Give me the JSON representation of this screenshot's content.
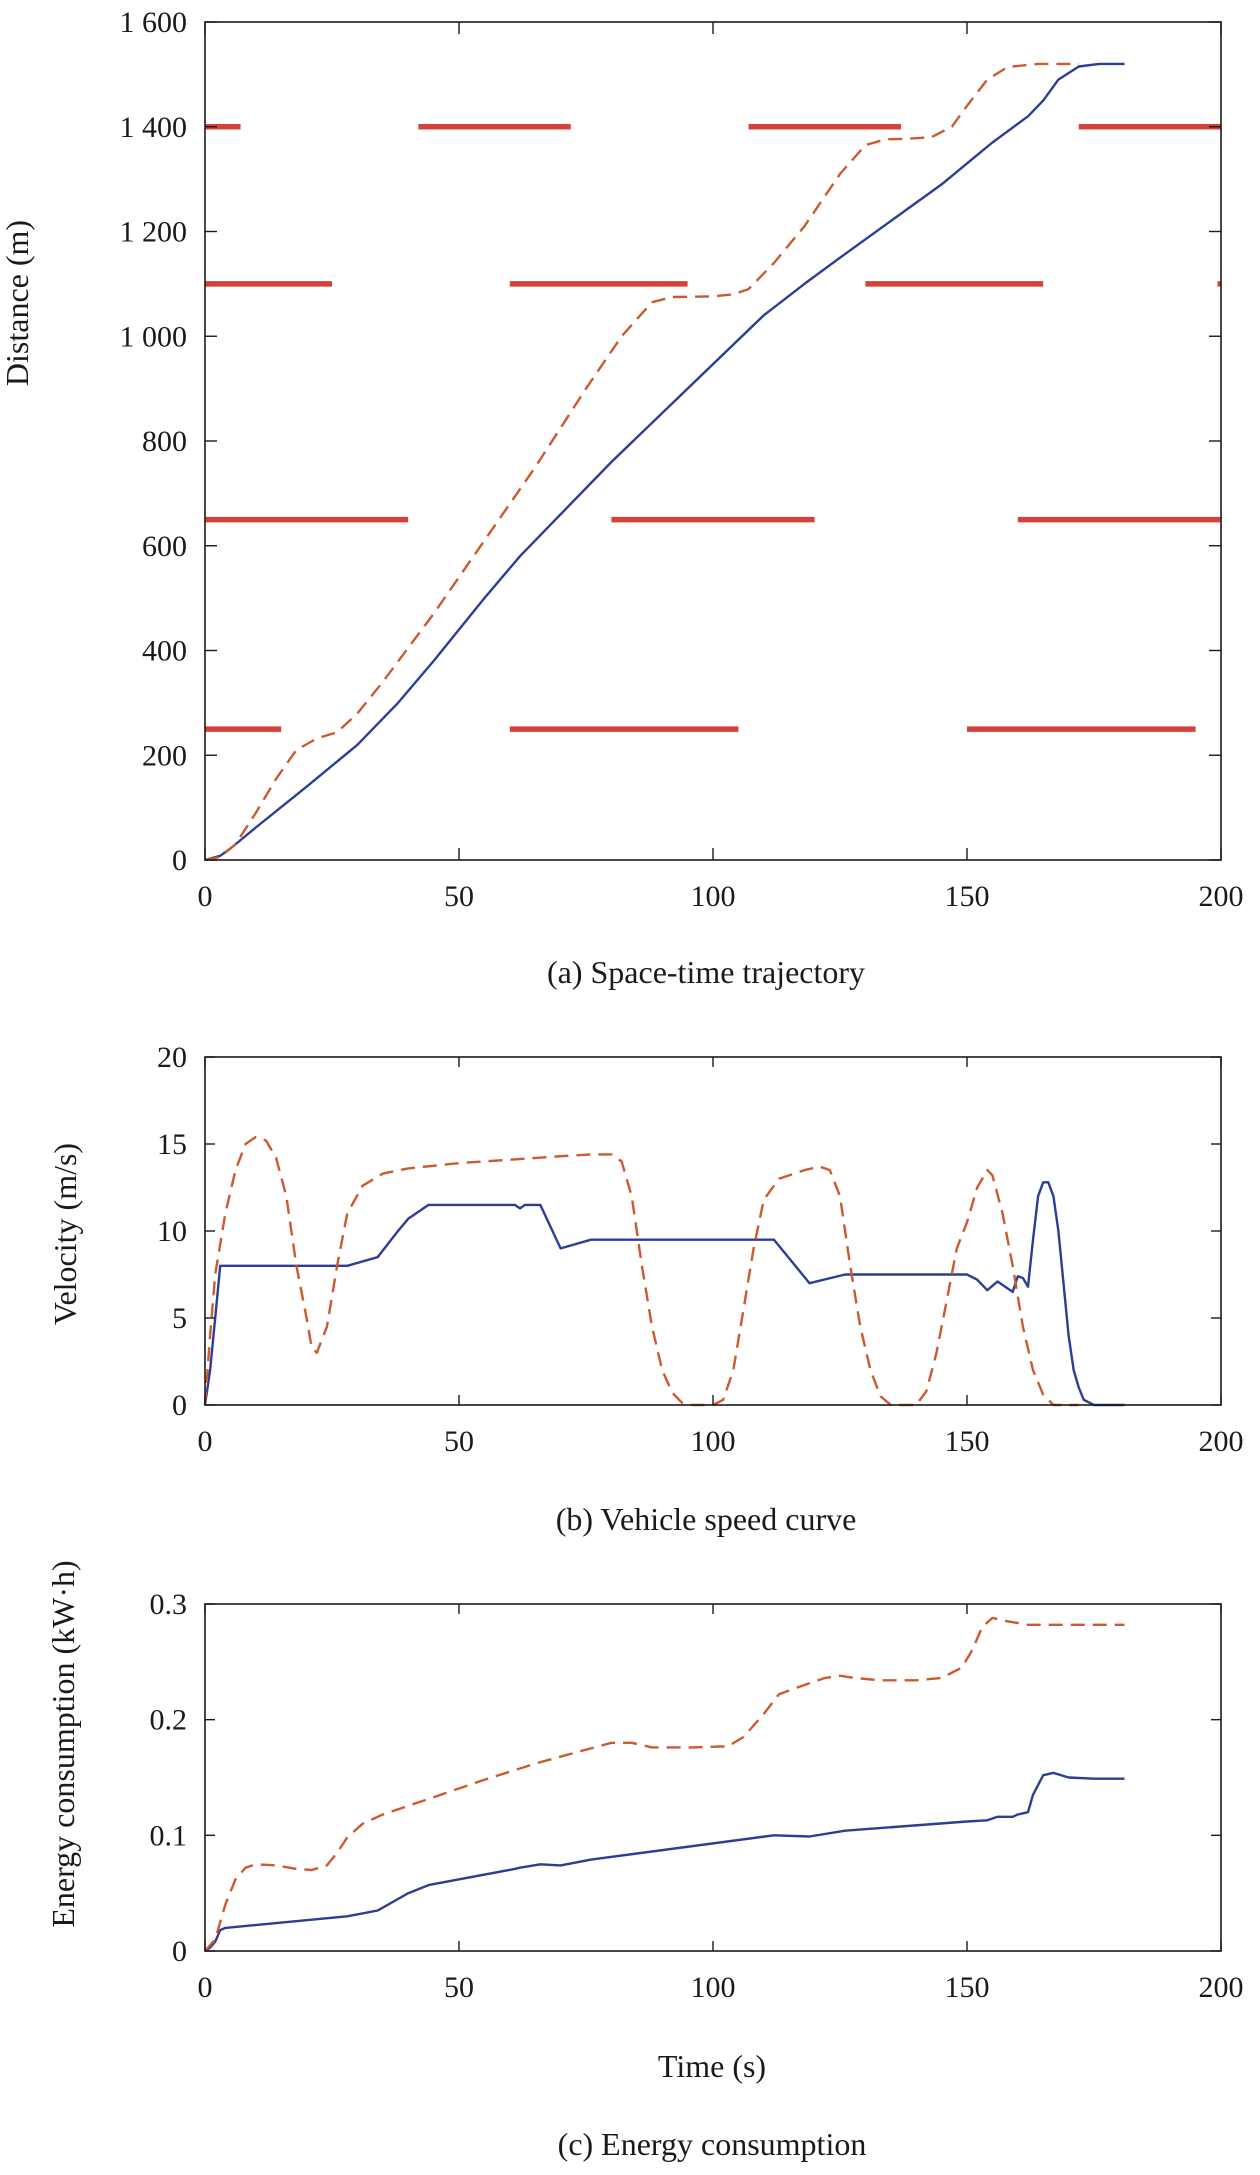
{
  "colors": {
    "series_solid": "#2c3e94",
    "series_dashed": "#cc5a2e",
    "signal_red": "#d6413a",
    "axis": "#1a1a1a"
  },
  "chart_data": [
    {
      "id": "a",
      "type": "line",
      "caption": "(a) Space-time trajectory",
      "xlabel": "",
      "ylabel": "Distance (m)",
      "xlim": [
        0,
        200
      ],
      "ylim": [
        0,
        1600
      ],
      "xticks": [
        0,
        50,
        100,
        150,
        200
      ],
      "xtick_labels": [
        "0",
        "50",
        "100",
        "150",
        "200"
      ],
      "yticks": [
        0,
        200,
        400,
        600,
        800,
        1000,
        1200,
        1400,
        1600
      ],
      "ytick_labels": [
        "0",
        "200",
        "400",
        "600",
        "800",
        "1 000",
        "1 200",
        "1 400",
        "1 600"
      ],
      "grid": false,
      "series": [
        {
          "style": "solid",
          "points": [
            [
              0,
              0
            ],
            [
              3,
              8
            ],
            [
              5,
              22
            ],
            [
              10,
              62
            ],
            [
              20,
              140
            ],
            [
              30,
              220
            ],
            [
              38,
              300
            ],
            [
              45,
              380
            ],
            [
              55,
              500
            ],
            [
              62,
              580
            ],
            [
              68,
              640
            ],
            [
              80,
              760
            ],
            [
              95,
              900
            ],
            [
              110,
              1040
            ],
            [
              118,
              1100
            ],
            [
              125,
              1150
            ],
            [
              135,
              1220
            ],
            [
              145,
              1290
            ],
            [
              150,
              1330
            ],
            [
              155,
              1370
            ],
            [
              162,
              1420
            ],
            [
              165,
              1450
            ],
            [
              168,
              1490
            ],
            [
              172,
              1515
            ],
            [
              176,
              1520
            ],
            [
              181,
              1520
            ]
          ]
        },
        {
          "style": "dashed",
          "points": [
            [
              0,
              0
            ],
            [
              3,
              6
            ],
            [
              6,
              30
            ],
            [
              10,
              90
            ],
            [
              14,
              155
            ],
            [
              18,
              210
            ],
            [
              22,
              232
            ],
            [
              26,
              244
            ],
            [
              30,
              280
            ],
            [
              35,
              340
            ],
            [
              45,
              470
            ],
            [
              55,
              610
            ],
            [
              65,
              750
            ],
            [
              75,
              900
            ],
            [
              82,
              1000
            ],
            [
              88,
              1065
            ],
            [
              92,
              1075
            ],
            [
              100,
              1076
            ],
            [
              104,
              1080
            ],
            [
              107,
              1090
            ],
            [
              112,
              1140
            ],
            [
              118,
              1210
            ],
            [
              125,
              1310
            ],
            [
              130,
              1365
            ],
            [
              134,
              1376
            ],
            [
              138,
              1377
            ],
            [
              143,
              1380
            ],
            [
              147,
              1400
            ],
            [
              150,
              1440
            ],
            [
              154,
              1490
            ],
            [
              158,
              1514
            ],
            [
              164,
              1520
            ],
            [
              172,
              1520
            ]
          ]
        }
      ],
      "signals": [
        {
          "distance": 250,
          "red_intervals": [
            [
              0,
              15
            ],
            [
              60,
              105
            ],
            [
              150,
              195
            ]
          ]
        },
        {
          "distance": 650,
          "red_intervals": [
            [
              0,
              40
            ],
            [
              80,
              120
            ],
            [
              160,
              200
            ]
          ]
        },
        {
          "distance": 1100,
          "red_intervals": [
            [
              0,
              25
            ],
            [
              60,
              95
            ],
            [
              130,
              165
            ],
            [
              199.3,
              200
            ]
          ]
        },
        {
          "distance": 1400,
          "red_intervals": [
            [
              0,
              7
            ],
            [
              42,
              72
            ],
            [
              107,
              137
            ],
            [
              172,
              200
            ]
          ]
        }
      ]
    },
    {
      "id": "b",
      "type": "line",
      "caption": "(b) Vehicle speed curve",
      "xlabel": "",
      "ylabel": "Velocity (m/s)",
      "xlim": [
        0,
        200
      ],
      "ylim": [
        0,
        20
      ],
      "xticks": [
        0,
        50,
        100,
        150,
        200
      ],
      "xtick_labels": [
        "0",
        "50",
        "100",
        "150",
        "200"
      ],
      "yticks": [
        0,
        5,
        10,
        15,
        20
      ],
      "ytick_labels": [
        "0",
        "5",
        "10",
        "15",
        "20"
      ],
      "grid": false,
      "series": [
        {
          "style": "solid",
          "points": [
            [
              0,
              0
            ],
            [
              1,
              2
            ],
            [
              2,
              5
            ],
            [
              3,
              8
            ],
            [
              28,
              8
            ],
            [
              34,
              8.5
            ],
            [
              38,
              10
            ],
            [
              40,
              10.7
            ],
            [
              44,
              11.5
            ],
            [
              61,
              11.5
            ],
            [
              62,
              11.3
            ],
            [
              63,
              11.5
            ],
            [
              66,
              11.5
            ],
            [
              70,
              9
            ],
            [
              76,
              9.5
            ],
            [
              112,
              9.5
            ],
            [
              119,
              7
            ],
            [
              126,
              7.5
            ],
            [
              150,
              7.5
            ],
            [
              152,
              7.2
            ],
            [
              154,
              6.6
            ],
            [
              156,
              7.1
            ],
            [
              158,
              6.7
            ],
            [
              159,
              6.5
            ],
            [
              160,
              7.4
            ],
            [
              161,
              7.3
            ],
            [
              162,
              6.8
            ],
            [
              163,
              9.5
            ],
            [
              164,
              12
            ],
            [
              165,
              12.8
            ],
            [
              166,
              12.8
            ],
            [
              167,
              12
            ],
            [
              168,
              10
            ],
            [
              169,
              7
            ],
            [
              170,
              4
            ],
            [
              171,
              2
            ],
            [
              172,
              1
            ],
            [
              173,
              0.3
            ],
            [
              175,
              0
            ],
            [
              181,
              0
            ]
          ]
        },
        {
          "style": "dashed",
          "points": [
            [
              0,
              0
            ],
            [
              1,
              4
            ],
            [
              2,
              7.5
            ],
            [
              4,
              11
            ],
            [
              6,
              13.5
            ],
            [
              8,
              15
            ],
            [
              10,
              15.4
            ],
            [
              12,
              15.2
            ],
            [
              14,
              14.2
            ],
            [
              16,
              12
            ],
            [
              18,
              8
            ],
            [
              20,
              5
            ],
            [
              21,
              3.3
            ],
            [
              22,
              3
            ],
            [
              24,
              4.5
            ],
            [
              26,
              8
            ],
            [
              28,
              11
            ],
            [
              31,
              12.6
            ],
            [
              35,
              13.3
            ],
            [
              40,
              13.6
            ],
            [
              50,
              13.9
            ],
            [
              60,
              14.1
            ],
            [
              70,
              14.3
            ],
            [
              76,
              14.4
            ],
            [
              80,
              14.4
            ],
            [
              82,
              14
            ],
            [
              84,
              12
            ],
            [
              86,
              8
            ],
            [
              88,
              4.5
            ],
            [
              90,
              2
            ],
            [
              92,
              0.7
            ],
            [
              94,
              0.1
            ],
            [
              96,
              0
            ],
            [
              100,
              0
            ],
            [
              102,
              0.3
            ],
            [
              104,
              2
            ],
            [
              106,
              5.5
            ],
            [
              108,
              9
            ],
            [
              110,
              11.8
            ],
            [
              113,
              13
            ],
            [
              118,
              13.5
            ],
            [
              121,
              13.7
            ],
            [
              123,
              13.5
            ],
            [
              125,
              12
            ],
            [
              127,
              8
            ],
            [
              129,
              4.5
            ],
            [
              131,
              2
            ],
            [
              133,
              0.5
            ],
            [
              135,
              0
            ],
            [
              140,
              0
            ],
            [
              142,
              0.8
            ],
            [
              144,
              3
            ],
            [
              146,
              6
            ],
            [
              148,
              9
            ],
            [
              150,
              10.5
            ],
            [
              152,
              12.5
            ],
            [
              154,
              13.5
            ],
            [
              155,
              13.2
            ],
            [
              157,
              11
            ],
            [
              159,
              8
            ],
            [
              161,
              4.5
            ],
            [
              163,
              2
            ],
            [
              165,
              0.6
            ],
            [
              167,
              0
            ],
            [
              172,
              0
            ]
          ]
        }
      ]
    },
    {
      "id": "c",
      "type": "line",
      "caption": "(c) Energy consumption",
      "xlabel": "Time (s)",
      "ylabel": "Energy consumption (kW·h)",
      "xlim": [
        0,
        200
      ],
      "ylim": [
        0,
        0.3
      ],
      "xticks": [
        0,
        50,
        100,
        150,
        200
      ],
      "xtick_labels": [
        "0",
        "50",
        "100",
        "150",
        "200"
      ],
      "yticks": [
        0,
        0.1,
        0.2,
        0.3
      ],
      "ytick_labels": [
        "0",
        "0.1",
        "0.2",
        "0.3"
      ],
      "grid": false,
      "series": [
        {
          "style": "solid",
          "points": [
            [
              0,
              0
            ],
            [
              1,
              0.003
            ],
            [
              2,
              0.008
            ],
            [
              3,
              0.018
            ],
            [
              4,
              0.02
            ],
            [
              28,
              0.03
            ],
            [
              34,
              0.035
            ],
            [
              38,
              0.045
            ],
            [
              40,
              0.05
            ],
            [
              44,
              0.057
            ],
            [
              61,
              0.071
            ],
            [
              62,
              0.072
            ],
            [
              66,
              0.075
            ],
            [
              70,
              0.074
            ],
            [
              76,
              0.079
            ],
            [
              112,
              0.1
            ],
            [
              119,
              0.099
            ],
            [
              126,
              0.104
            ],
            [
              150,
              0.112
            ],
            [
              154,
              0.113
            ],
            [
              156,
              0.116
            ],
            [
              159,
              0.116
            ],
            [
              160,
              0.118
            ],
            [
              162,
              0.12
            ],
            [
              163,
              0.135
            ],
            [
              165,
              0.152
            ],
            [
              167,
              0.154
            ],
            [
              170,
              0.15
            ],
            [
              175,
              0.149
            ],
            [
              181,
              0.149
            ]
          ]
        },
        {
          "style": "dashed",
          "points": [
            [
              0,
              0
            ],
            [
              2,
              0.01
            ],
            [
              4,
              0.04
            ],
            [
              6,
              0.062
            ],
            [
              8,
              0.072
            ],
            [
              10,
              0.075
            ],
            [
              14,
              0.074
            ],
            [
              18,
              0.071
            ],
            [
              21,
              0.07
            ],
            [
              24,
              0.074
            ],
            [
              26,
              0.085
            ],
            [
              28,
              0.098
            ],
            [
              31,
              0.11
            ],
            [
              35,
              0.118
            ],
            [
              45,
              0.133
            ],
            [
              55,
              0.148
            ],
            [
              65,
              0.162
            ],
            [
              75,
              0.174
            ],
            [
              80,
              0.18
            ],
            [
              84,
              0.18
            ],
            [
              88,
              0.176
            ],
            [
              96,
              0.176
            ],
            [
              103,
              0.177
            ],
            [
              106,
              0.185
            ],
            [
              110,
              0.205
            ],
            [
              113,
              0.222
            ],
            [
              118,
              0.23
            ],
            [
              122,
              0.236
            ],
            [
              125,
              0.238
            ],
            [
              128,
              0.236
            ],
            [
              133,
              0.234
            ],
            [
              140,
              0.234
            ],
            [
              145,
              0.236
            ],
            [
              149,
              0.245
            ],
            [
              151,
              0.26
            ],
            [
              153,
              0.28
            ],
            [
              155,
              0.288
            ],
            [
              158,
              0.285
            ],
            [
              162,
              0.282
            ],
            [
              172,
              0.282
            ],
            [
              181,
              0.282
            ]
          ]
        }
      ]
    }
  ]
}
